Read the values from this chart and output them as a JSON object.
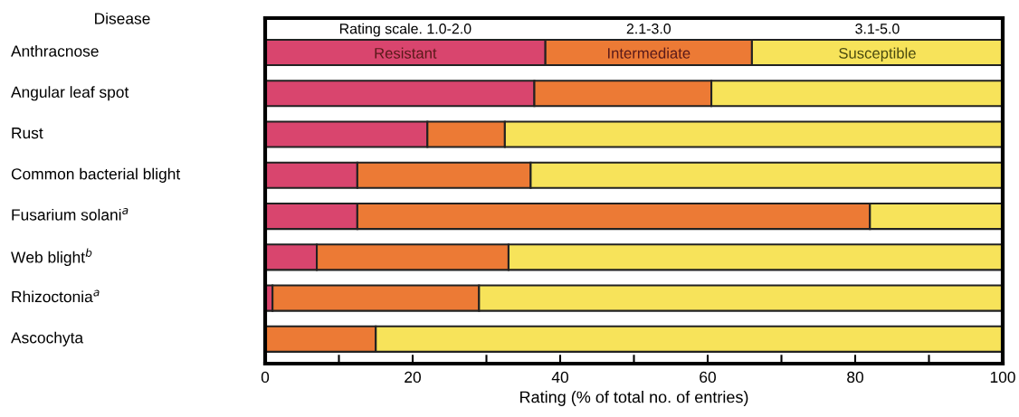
{
  "chart_data": {
    "type": "bar",
    "orientation": "horizontal",
    "stacked": true,
    "ylabel": "Disease",
    "xlabel": "Rating (% of total no. of entries)",
    "categories": [
      "Anthracnose",
      "Angular leaf spot",
      "Rust",
      "Common bacterial blight",
      "Fusarium solani$^{a}$",
      "Web blight$^{b}$",
      "Rhizoctonia$^{a}$",
      "Ascochyta"
    ],
    "series": [
      {
        "name": "Resistant",
        "color": "#d9456e",
        "values": [
          38,
          36.5,
          22,
          12.5,
          12.5,
          7,
          1,
          0
        ]
      },
      {
        "name": "Intermediate",
        "color": "#ec7a35",
        "values": [
          28,
          24,
          10.5,
          23.5,
          69.5,
          26,
          28,
          15
        ]
      },
      {
        "name": "Susceptible",
        "color": "#f7e35a",
        "values": [
          34,
          39.5,
          67.5,
          64,
          18,
          67,
          71,
          85
        ]
      }
    ],
    "annotations": [
      "Rating scale. 1.0-2.0",
      "2.1-3.0",
      "3.1-5.0"
    ],
    "xlim": [
      0,
      100
    ],
    "xticks": [
      0,
      {
        "value": 10,
        "label": null
      },
      20,
      {
        "value": 30,
        "label": null
      },
      40,
      {
        "value": 50,
        "label": null
      },
      60,
      {
        "value": 70,
        "label": null
      },
      80,
      {
        "value": 90,
        "label": null
      },
      100
    ],
    "legend": false,
    "grid": false
  }
}
